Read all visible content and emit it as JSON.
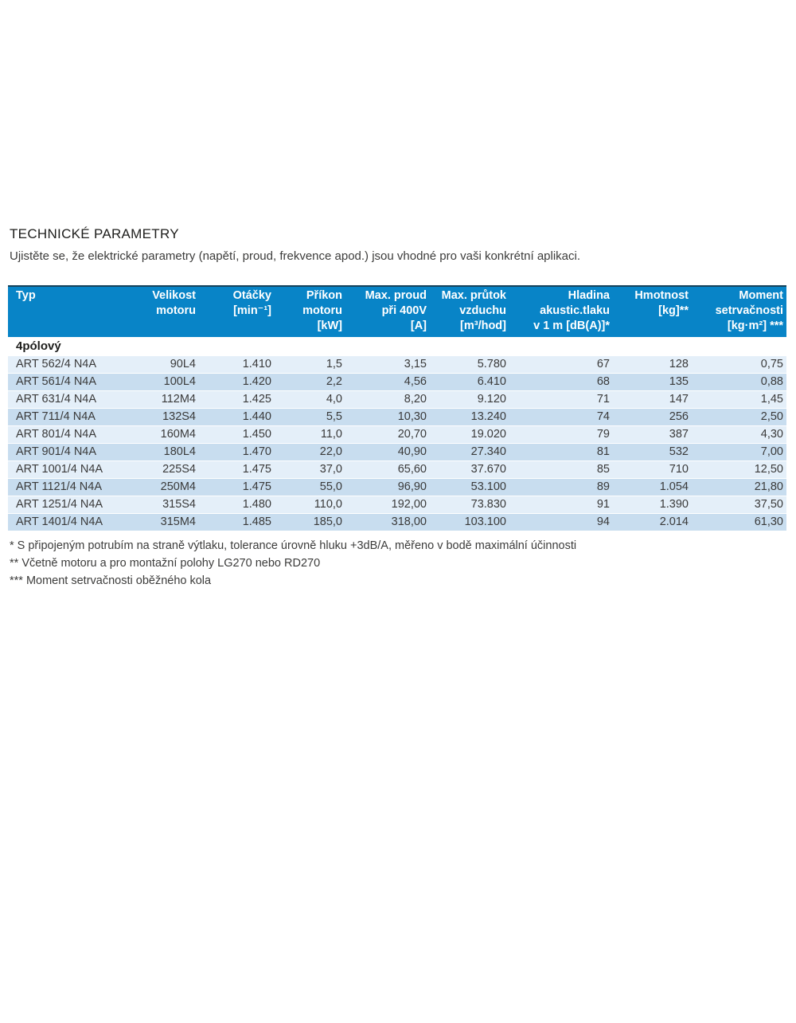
{
  "header": {
    "title": "TECHNICKÉ PARAMETRY",
    "subtitle": "Ujistěte se, že elektrické parametry (napětí, proud, frekvence apod.) jsou vhodné pro vaši konkrétní aplikaci."
  },
  "table": {
    "columns": [
      {
        "label": "Typ",
        "align": "left"
      },
      {
        "label": "Velikost\nmotoru",
        "align": "right"
      },
      {
        "label": "Otáčky\n[min⁻¹]",
        "align": "right"
      },
      {
        "label": "Příkon\nmotoru\n[kW]",
        "align": "right"
      },
      {
        "label": "Max. proud\npři 400V\n[A]",
        "align": "right"
      },
      {
        "label": "Max. průtok\nvzduchu\n[m³/hod]",
        "align": "right"
      },
      {
        "label": "Hladina\nakustic.tlaku\nv 1 m [dB(A)]*",
        "align": "right"
      },
      {
        "label": "Hmotnost\n[kg]**",
        "align": "right"
      },
      {
        "label": "Moment\nsetrvačnosti\n[kg·m²] ***",
        "align": "right"
      }
    ],
    "section": "4pólový",
    "rows": [
      [
        "ART 562/4 N4A",
        "90L4",
        "1.410",
        "1,5",
        "3,15",
        "5.780",
        "67",
        "128",
        "0,75"
      ],
      [
        "ART 561/4 N4A",
        "100L4",
        "1.420",
        "2,2",
        "4,56",
        "6.410",
        "68",
        "135",
        "0,88"
      ],
      [
        "ART 631/4 N4A",
        "112M4",
        "1.425",
        "4,0",
        "8,20",
        "9.120",
        "71",
        "147",
        "1,45"
      ],
      [
        "ART 711/4 N4A",
        "132S4",
        "1.440",
        "5,5",
        "10,30",
        "13.240",
        "74",
        "256",
        "2,50"
      ],
      [
        "ART 801/4 N4A",
        "160M4",
        "1.450",
        "11,0",
        "20,70",
        "19.020",
        "79",
        "387",
        "4,30"
      ],
      [
        "ART 901/4 N4A",
        "180L4",
        "1.470",
        "22,0",
        "40,90",
        "27.340",
        "81",
        "532",
        "7,00"
      ],
      [
        "ART 1001/4 N4A",
        "225S4",
        "1.475",
        "37,0",
        "65,60",
        "37.670",
        "85",
        "710",
        "12,50"
      ],
      [
        "ART 1121/4 N4A",
        "250M4",
        "1.475",
        "55,0",
        "96,90",
        "53.100",
        "89",
        "1.054",
        "21,80"
      ],
      [
        "ART 1251/4 N4A",
        "315S4",
        "1.480",
        "110,0",
        "192,00",
        "73.830",
        "91",
        "1.390",
        "37,50"
      ],
      [
        "ART 1401/4 N4A",
        "315M4",
        "1.485",
        "185,0",
        "318,00",
        "103.100",
        "94",
        "2.014",
        "61,30"
      ]
    ]
  },
  "footnotes": [
    "* S připojeným potrubím na straně výtlaku, tolerance úrovně hluku +3dB/A, měřeno v bodě maximální účinnosti",
    "** Včetně motoru a pro montažní polohy LG270 nebo RD270",
    "*** Moment setrvačnosti oběžného kola"
  ],
  "colors": {
    "header_background": "#0884c7",
    "header_top_border": "#16425a",
    "row_light": "#e4eff9",
    "row_dark": "#c8ddef",
    "body_text": "#3a3a3a"
  }
}
